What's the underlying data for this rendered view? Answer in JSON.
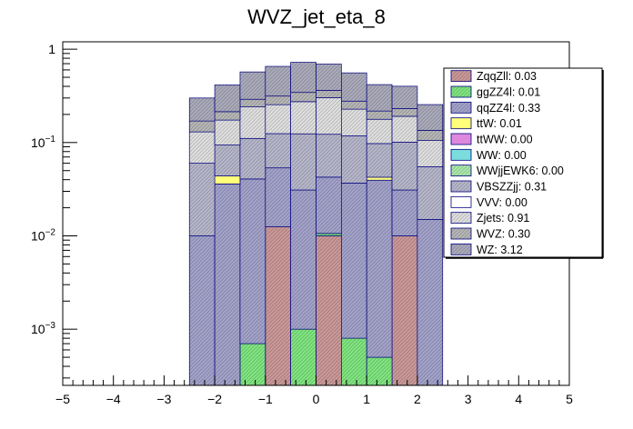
{
  "chart_data": {
    "type": "bar",
    "title": "WVZ_jet_eta_8",
    "xlabel": "",
    "ylabel": "",
    "xlim": [
      -5,
      5
    ],
    "ylim": [
      0.00025,
      1.2
    ],
    "log_y": true,
    "stacked": true,
    "bin_edges": [
      -2.5,
      -2.0,
      -1.5,
      -1.0,
      -0.5,
      0.0,
      0.5,
      1.0,
      1.5,
      2.0,
      2.5
    ],
    "x_ticks": [
      "−5",
      "−4",
      "−3",
      "−2",
      "−1",
      "0",
      "1",
      "2",
      "3",
      "4",
      "5"
    ],
    "y_ticks": [
      {
        "value": 0.001,
        "base": "10",
        "exp": "−3"
      },
      {
        "value": 0.01,
        "base": "10",
        "exp": "−2"
      },
      {
        "value": 0.1,
        "base": "10",
        "exp": "−1"
      },
      {
        "value": 1,
        "base": "1",
        "exp": ""
      }
    ],
    "legend_position": "top-right",
    "legend": [
      {
        "label": "ZqqZll: 0.03",
        "color": "#c89696",
        "hatch": true
      },
      {
        "label": "ggZZ4l: 0.01",
        "color": "#7ee27e",
        "hatch": true
      },
      {
        "label": "qqZZ4l: 0.33",
        "color": "#a0a0c8",
        "hatch": true
      },
      {
        "label": "ttW: 0.01",
        "color": "#ffff7a",
        "hatch": false
      },
      {
        "label": "ttWW: 0.00",
        "color": "#dd88dd",
        "hatch": false
      },
      {
        "label": "WW: 0.00",
        "color": "#7adcdc",
        "hatch": false
      },
      {
        "label": "WWjjEWK6: 0.00",
        "color": "#a8e6a8",
        "hatch": true
      },
      {
        "label": "VBSZZjj: 0.31",
        "color": "#b4b4c8",
        "hatch": true
      },
      {
        "label": "VVV: 0.00",
        "color": "#ffffff",
        "hatch": false
      },
      {
        "label": "Zjets: 0.91",
        "color": "#dcdcdc",
        "hatch": true
      },
      {
        "label": "WVZ: 0.30",
        "color": "#b4b4b4",
        "hatch": true
      },
      {
        "label": "WZ: 3.12",
        "color": "#a8a8b8",
        "hatch": true
      }
    ],
    "series": [
      {
        "name": "ZqqZll: 0.03",
        "color": "#c89696",
        "hatch": true,
        "values": [
          0,
          0,
          0,
          0.0125,
          0,
          0.01,
          0,
          0,
          0.01,
          0
        ]
      },
      {
        "name": "ggZZ4l: 0.01",
        "color": "#7ee27e",
        "hatch": true,
        "values": [
          0,
          0,
          0.0007,
          0,
          0.001,
          0.0006,
          0.0008,
          0.0005,
          0,
          0
        ]
      },
      {
        "name": "qqZZ4l: 0.33",
        "color": "#a0a0c8",
        "hatch": true,
        "values": [
          0.01,
          0.036,
          0.04,
          0.041,
          0.03,
          0.032,
          0.036,
          0.039,
          0.021,
          0.015
        ]
      },
      {
        "name": "ttW: 0.01",
        "color": "#ffff7a",
        "hatch": false,
        "values": [
          0,
          0.008,
          0,
          0,
          0,
          0,
          0,
          0.003,
          0,
          0
        ]
      },
      {
        "name": "VBSZZjj: 0.31",
        "color": "#b4b4c8",
        "hatch": true,
        "values": [
          0.05,
          0.05,
          0.07,
          0.071,
          0.093,
          0.08,
          0.081,
          0.055,
          0.07,
          0.04
        ]
      },
      {
        "name": "Zjets: 0.91",
        "color": "#dcdcdc",
        "hatch": true,
        "values": [
          0.07,
          0.08,
          0.13,
          0.13,
          0.15,
          0.18,
          0.11,
          0.08,
          0.09,
          0.05
        ]
      },
      {
        "name": "WVZ: 0.30",
        "color": "#b4b4b4",
        "hatch": true,
        "values": [
          0.04,
          0.04,
          0.05,
          0.06,
          0.07,
          0.06,
          0.05,
          0.04,
          0.04,
          0.03
        ]
      },
      {
        "name": "WZ: 3.12",
        "color": "#a8a8b8",
        "hatch": true,
        "values": [
          0.13,
          0.2,
          0.28,
          0.34,
          0.38,
          0.33,
          0.28,
          0.2,
          0.17,
          0.12
        ]
      }
    ]
  }
}
